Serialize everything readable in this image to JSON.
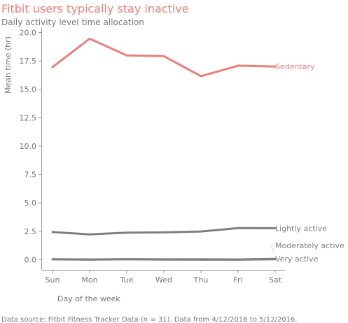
{
  "chart_data": {
    "type": "line",
    "title": "Fitbit users typically stay inactive",
    "subtitle": "Daily activity level time allocation",
    "xlabel": "Day of the week",
    "ylabel": "Mean time (hr)",
    "categories": [
      "Sun",
      "Mon",
      "Tue",
      "Wed",
      "Thu",
      "Fri",
      "Sat"
    ],
    "ylim": [
      -0.9,
      20.4
    ],
    "yticks": [
      "20.0",
      "17.5",
      "15.0",
      "12.5",
      "10.0",
      "7.5",
      "5.0",
      "2.5",
      "0.0"
    ],
    "grid": false,
    "series": [
      {
        "name": "Sedentary",
        "color": "#e8807b",
        "values": [
          16.95,
          19.45,
          17.98,
          17.92,
          16.15,
          17.08,
          17.0
        ]
      },
      {
        "name": "Lightly active",
        "color": "#7f7f7f",
        "values": [
          2.43,
          2.22,
          2.38,
          2.4,
          2.48,
          2.78,
          2.77
        ]
      },
      {
        "name": "Moderately active",
        "color": "#7f7f7f",
        "values": [
          0.03,
          0.0,
          0.04,
          0.01,
          0.0,
          0.0,
          0.04
        ]
      },
      {
        "name": "Very active",
        "color": "#7f7f7f",
        "values": [
          0.04,
          0.02,
          0.05,
          0.03,
          0.03,
          0.02,
          0.07
        ]
      }
    ],
    "source": "Data source: Fitbit Fitness Tracker Data (n = 31). Data from 4/12/2016 to 5/12/2016."
  }
}
